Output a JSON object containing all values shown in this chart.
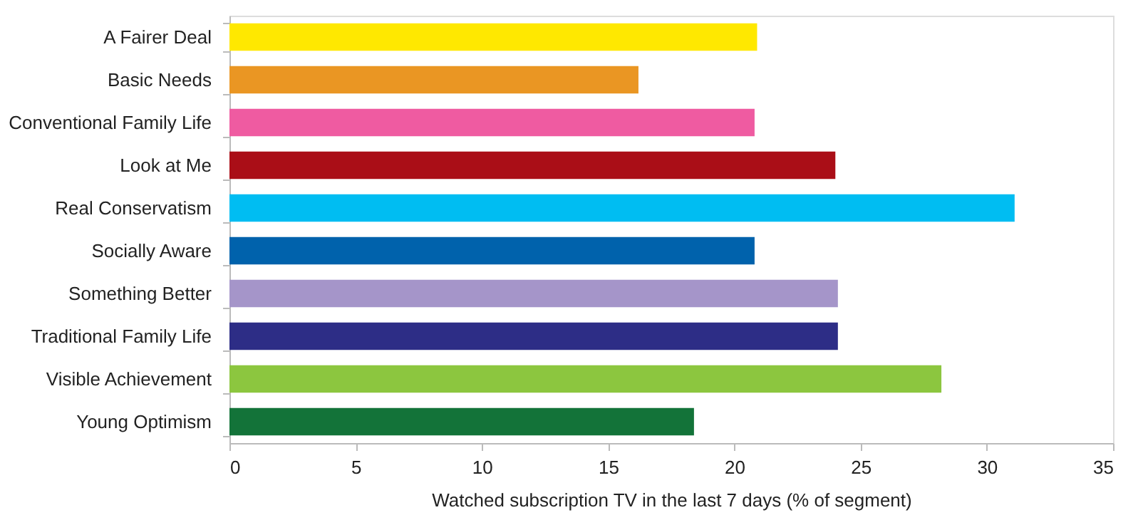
{
  "chart_data": {
    "type": "bar",
    "orientation": "horizontal",
    "xlabel": "Watched subscription TV in the last 7 days (% of segment)",
    "categories": [
      "A Fairer Deal",
      "Basic Needs",
      "Conventional Family Life",
      "Look at Me",
      "Real Conservatism",
      "Socially Aware",
      "Something Better",
      "Traditional Family Life",
      "Visible Achievement",
      "Young Optimism"
    ],
    "values": [
      20.9,
      16.2,
      20.8,
      24.0,
      31.1,
      20.8,
      24.1,
      24.1,
      28.2,
      18.4
    ],
    "colors": [
      "#ffe800",
      "#ea9623",
      "#ef5ba1",
      "#aa0e17",
      "#00bdf2",
      "#0062ac",
      "#a595c9",
      "#2d2d86",
      "#8cc63f",
      "#137339"
    ],
    "xlim": [
      0,
      35
    ],
    "xticks": [
      0,
      5,
      10,
      15,
      20,
      25,
      30,
      35
    ],
    "grid": false,
    "legend": false
  }
}
